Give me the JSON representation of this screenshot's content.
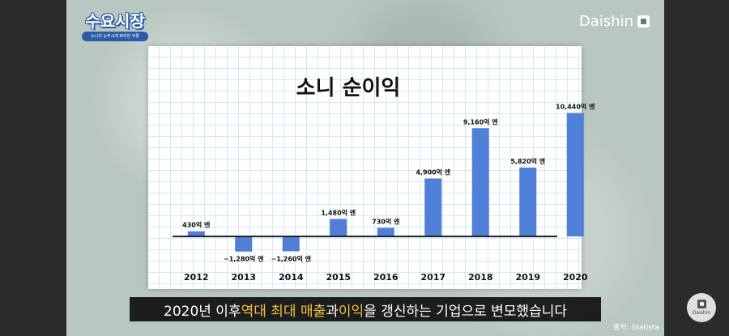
{
  "logo": {
    "title": "수요시장",
    "subtitle": "소니의 눈부시게 화려한 부활"
  },
  "brand": {
    "name": "Daishin",
    "icon": "daishin-logo-icon"
  },
  "subtitle": {
    "part1": "2020년 이후 ",
    "highlight1": "역대 최대 매출",
    "part2": "과 ",
    "highlight2": "이익",
    "part3": "을 갱신하는 기업으로 변모했습니다"
  },
  "source": "출처: Statista",
  "watermark": {
    "label": "Daishin"
  },
  "colors": {
    "bar": "#4f7fd6",
    "subtitle_highlight": "#f5c23c"
  },
  "chart_data": {
    "type": "bar",
    "title": "소니 순이익",
    "categories": [
      "2012",
      "2013",
      "2014",
      "2015",
      "2016",
      "2017",
      "2018",
      "2019",
      "2020"
    ],
    "values": [
      430,
      -1280,
      -1260,
      1480,
      730,
      4900,
      9160,
      5820,
      10440
    ],
    "value_labels": [
      "430억 엔",
      "−1,280억 엔",
      "−1,260억 엔",
      "1,480억 엔",
      "730억 엔",
      "4,900억 엔",
      "9,160억 엔",
      "5,820억 엔",
      "10,440억 엔"
    ],
    "unit": "억 엔",
    "ylim": [
      -1600,
      11000
    ],
    "grid": true,
    "legend": "none"
  }
}
